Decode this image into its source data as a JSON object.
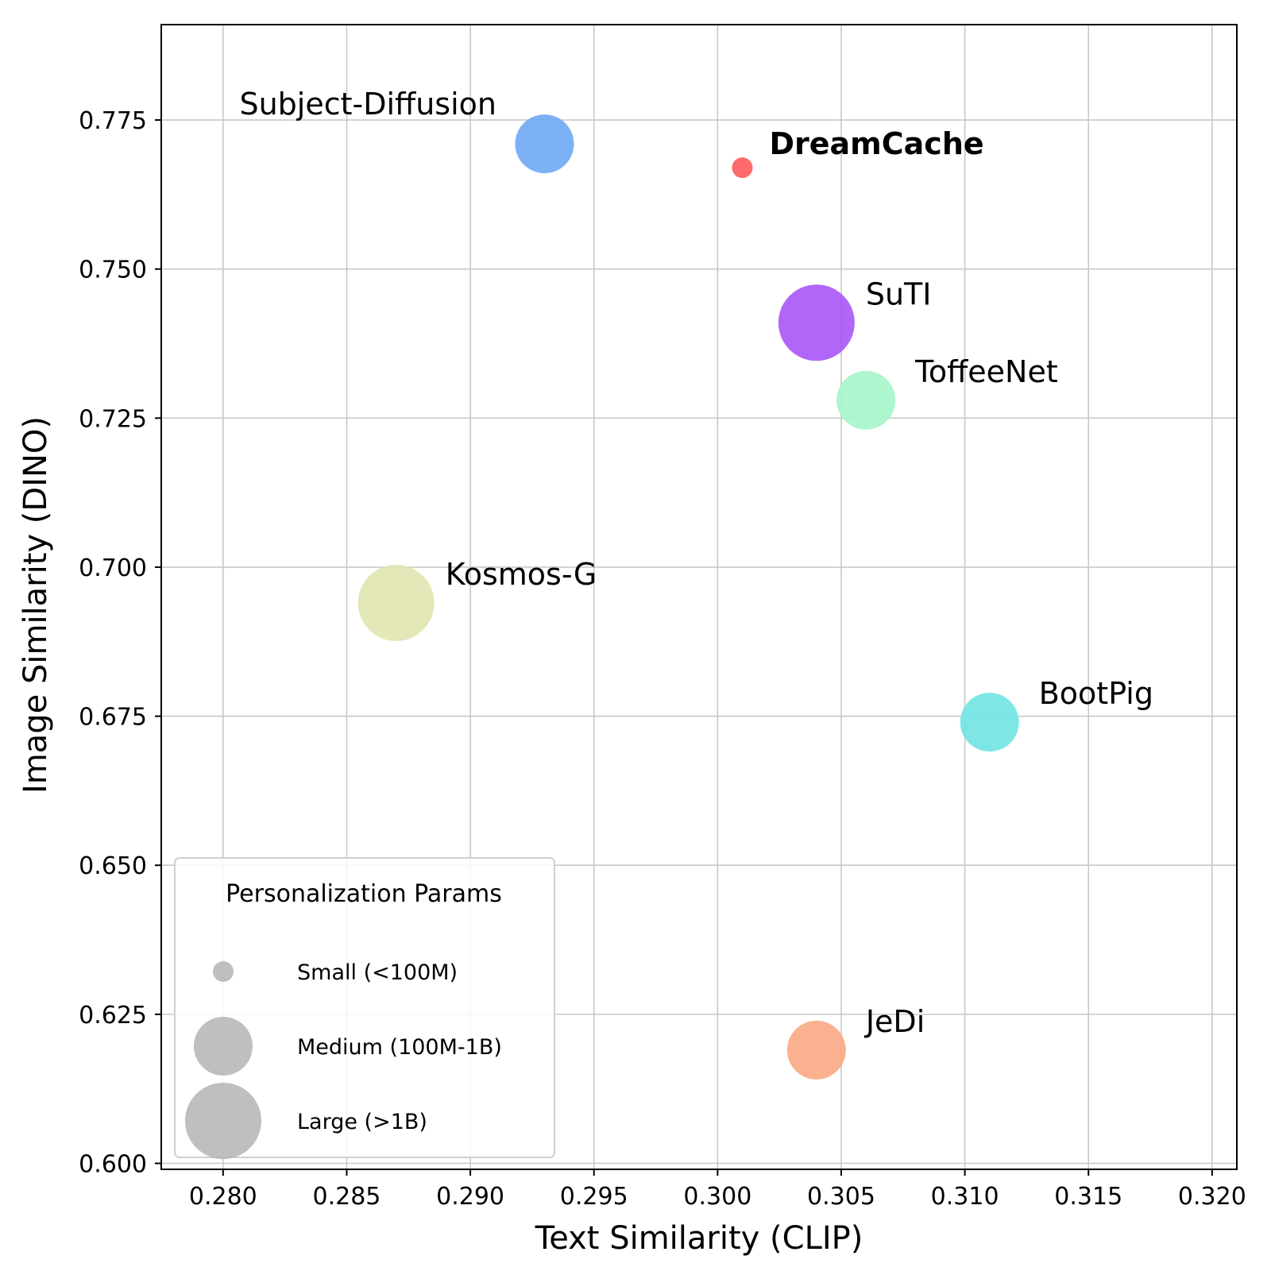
{
  "chart_data": {
    "type": "scatter",
    "xlabel": "Text Similarity (CLIP)",
    "ylabel": "Image Similarity (DINO)",
    "xlim": [
      0.2775,
      0.321
    ],
    "ylim": [
      0.599,
      0.791
    ],
    "x_ticks": [
      0.28,
      0.285,
      0.29,
      0.295,
      0.3,
      0.305,
      0.31,
      0.315,
      0.32
    ],
    "x_tick_labels": [
      "0.280",
      "0.285",
      "0.290",
      "0.295",
      "0.300",
      "0.305",
      "0.310",
      "0.315",
      "0.320"
    ],
    "y_ticks": [
      0.6,
      0.625,
      0.65,
      0.675,
      0.7,
      0.725,
      0.75,
      0.775
    ],
    "y_tick_labels": [
      "0.600",
      "0.625",
      "0.650",
      "0.675",
      "0.700",
      "0.725",
      "0.750",
      "0.775"
    ],
    "grid": true,
    "points": [
      {
        "label": "Subject-Diffusion",
        "x": 0.293,
        "y": 0.771,
        "size": "medium",
        "color": "#6fa8f5",
        "bold": false
      },
      {
        "label": "DreamCache",
        "x": 0.301,
        "y": 0.767,
        "size": "small",
        "color": "#ff5a5a",
        "bold": true
      },
      {
        "label": "SuTI",
        "x": 0.304,
        "y": 0.741,
        "size": "large",
        "color": "#a855f7",
        "bold": false
      },
      {
        "label": "ToffeeNet",
        "x": 0.306,
        "y": 0.728,
        "size": "medium",
        "color": "#a5f5c8",
        "bold": false
      },
      {
        "label": "Kosmos-G",
        "x": 0.287,
        "y": 0.694,
        "size": "large",
        "color": "#e1e6b0",
        "bold": false
      },
      {
        "label": "BootPig",
        "x": 0.311,
        "y": 0.674,
        "size": "medium",
        "color": "#70e4e2",
        "bold": false
      },
      {
        "label": "JeDi",
        "x": 0.304,
        "y": 0.619,
        "size": "medium",
        "color": "#fba883",
        "bold": false
      }
    ],
    "legend": {
      "title": "Personalization Params",
      "placement": "lower-left",
      "color": "#b4b4b4",
      "items": [
        {
          "size": "small",
          "label": "Small (<100M)"
        },
        {
          "size": "medium",
          "label": "Medium (100M-1B)"
        },
        {
          "size": "large",
          "label": "Large (>1B)"
        }
      ]
    }
  }
}
